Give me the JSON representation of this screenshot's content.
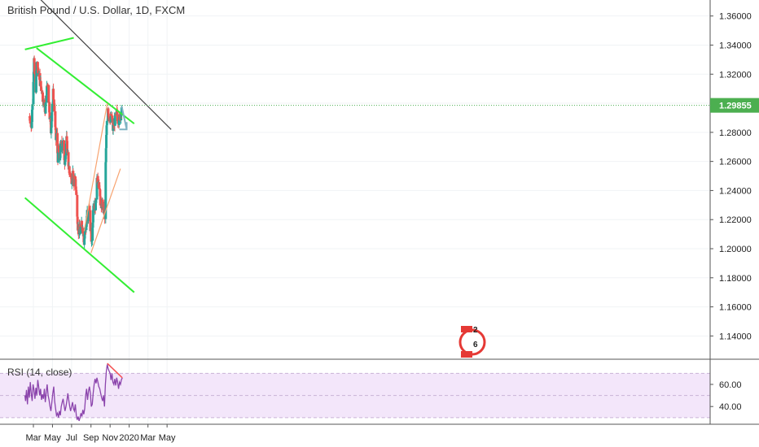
{
  "chart_data": {
    "type": "candlestick",
    "title": "British Pound / U.S. Dollar, 1D, FXCM",
    "current_price": "1.29855",
    "price_axis": {
      "ylim": [
        1.124,
        1.371
      ],
      "ticks": [
        "1.36000",
        "1.34000",
        "1.32000",
        "1.30000",
        "1.28000",
        "1.26000",
        "1.24000",
        "1.22000",
        "1.20000",
        "1.18000",
        "1.16000",
        "1.14000"
      ]
    },
    "time_axis": {
      "labels": [
        {
          "label": "Mar",
          "day": 0
        },
        {
          "label": "May",
          "day": 61
        },
        {
          "label": "Jul",
          "day": 122
        },
        {
          "label": "Sep",
          "day": 184
        },
        {
          "label": "Nov",
          "day": 245
        },
        {
          "label": "2020",
          "day": 306
        },
        {
          "label": "Mar",
          "day": 366
        },
        {
          "label": "May",
          "day": 427
        }
      ]
    },
    "close_path": [
      [
        -13,
        1.291
      ],
      [
        -9,
        1.288
      ],
      [
        -6,
        1.282
      ],
      [
        -3,
        1.302
      ],
      [
        0,
        1.317
      ],
      [
        2,
        1.33
      ],
      [
        4,
        1.32
      ],
      [
        6,
        1.315
      ],
      [
        8,
        1.31
      ],
      [
        10,
        1.322
      ],
      [
        12,
        1.333
      ],
      [
        14,
        1.325
      ],
      [
        16,
        1.318
      ],
      [
        18,
        1.321
      ],
      [
        20,
        1.312
      ],
      [
        22,
        1.315
      ],
      [
        24,
        1.31
      ],
      [
        26,
        1.313
      ],
      [
        28,
        1.308
      ],
      [
        30,
        1.304
      ],
      [
        32,
        1.301
      ],
      [
        34,
        1.296
      ],
      [
        36,
        1.3
      ],
      [
        38,
        1.292
      ],
      [
        40,
        1.305
      ],
      [
        42,
        1.308
      ],
      [
        44,
        1.312
      ],
      [
        46,
        1.314
      ],
      [
        48,
        1.305
      ],
      [
        50,
        1.3
      ],
      [
        52,
        1.292
      ],
      [
        54,
        1.285
      ],
      [
        56,
        1.278
      ],
      [
        58,
        1.29
      ],
      [
        60,
        1.3
      ],
      [
        62,
        1.31
      ],
      [
        64,
        1.305
      ],
      [
        66,
        1.3
      ],
      [
        68,
        1.29
      ],
      [
        70,
        1.282
      ],
      [
        72,
        1.275
      ],
      [
        74,
        1.278
      ],
      [
        76,
        1.27
      ],
      [
        78,
        1.262
      ],
      [
        80,
        1.27
      ],
      [
        82,
        1.262
      ],
      [
        84,
        1.258
      ],
      [
        86,
        1.268
      ],
      [
        88,
        1.272
      ],
      [
        90,
        1.275
      ],
      [
        92,
        1.27
      ],
      [
        94,
        1.274
      ],
      [
        96,
        1.272
      ],
      [
        98,
        1.265
      ],
      [
        100,
        1.26
      ],
      [
        102,
        1.265
      ],
      [
        104,
        1.27
      ],
      [
        106,
        1.275
      ],
      [
        108,
        1.268
      ],
      [
        110,
        1.262
      ],
      [
        112,
        1.258
      ],
      [
        114,
        1.255
      ],
      [
        116,
        1.248
      ],
      [
        118,
        1.25
      ],
      [
        120,
        1.252
      ],
      [
        122,
        1.244
      ],
      [
        124,
        1.25
      ],
      [
        126,
        1.252
      ],
      [
        128,
        1.246
      ],
      [
        130,
        1.244
      ],
      [
        132,
        1.25
      ],
      [
        134,
        1.248
      ],
      [
        136,
        1.24
      ],
      [
        138,
        1.232
      ],
      [
        140,
        1.225
      ],
      [
        142,
        1.215
      ],
      [
        144,
        1.212
      ],
      [
        146,
        1.214
      ],
      [
        148,
        1.213
      ],
      [
        150,
        1.21
      ],
      [
        152,
        1.215
      ],
      [
        154,
        1.218
      ],
      [
        156,
        1.215
      ],
      [
        158,
        1.213
      ],
      [
        160,
        1.208
      ],
      [
        162,
        1.205
      ],
      [
        164,
        1.21
      ],
      [
        166,
        1.217
      ],
      [
        168,
        1.213
      ],
      [
        170,
        1.22
      ],
      [
        172,
        1.225
      ],
      [
        174,
        1.215
      ],
      [
        176,
        1.22
      ],
      [
        178,
        1.228
      ],
      [
        180,
        1.225
      ],
      [
        182,
        1.215
      ],
      [
        184,
        1.21
      ],
      [
        186,
        1.203
      ],
      [
        188,
        1.21
      ],
      [
        190,
        1.22
      ],
      [
        192,
        1.232
      ],
      [
        194,
        1.235
      ],
      [
        196,
        1.23
      ],
      [
        198,
        1.228
      ],
      [
        200,
        1.236
      ],
      [
        202,
        1.245
      ],
      [
        204,
        1.248
      ],
      [
        206,
        1.246
      ],
      [
        208,
        1.25
      ],
      [
        210,
        1.244
      ],
      [
        212,
        1.238
      ],
      [
        214,
        1.232
      ],
      [
        216,
        1.225
      ],
      [
        218,
        1.228
      ],
      [
        220,
        1.232
      ],
      [
        222,
        1.228
      ],
      [
        224,
        1.222
      ],
      [
        226,
        1.23
      ],
      [
        228,
        1.22
      ],
      [
        230,
        1.248
      ],
      [
        232,
        1.268
      ],
      [
        234,
        1.285
      ],
      [
        236,
        1.295
      ],
      [
        238,
        1.298
      ],
      [
        240,
        1.292
      ],
      [
        242,
        1.29
      ],
      [
        244,
        1.295
      ],
      [
        246,
        1.285
      ],
      [
        248,
        1.29
      ],
      [
        250,
        1.293
      ],
      [
        252,
        1.288
      ],
      [
        254,
        1.282
      ],
      [
        256,
        1.286
      ],
      [
        258,
        1.29
      ],
      [
        260,
        1.287
      ],
      [
        262,
        1.291
      ],
      [
        264,
        1.288
      ],
      [
        266,
        1.294
      ],
      [
        268,
        1.292
      ],
      [
        270,
        1.288
      ],
      [
        272,
        1.285
      ],
      [
        274,
        1.291
      ],
      [
        276,
        1.289
      ],
      [
        278,
        1.292
      ],
      [
        280,
        1.294
      ],
      [
        282,
        1.298
      ]
    ],
    "drawings": [
      {
        "name": "upper-channel-line",
        "color": "#33ee33",
        "p1": [
          10,
          1.338
        ],
        "p2": [
          322,
          1.286
        ]
      },
      {
        "name": "lower-channel-line",
        "color": "#33ee33",
        "p1": [
          -27,
          1.235
        ],
        "p2": [
          322,
          1.17
        ]
      },
      {
        "name": "top-left-green-line",
        "color": "#33ee33",
        "p1": [
          -27,
          1.337
        ],
        "p2": [
          129,
          1.345
        ]
      },
      {
        "name": "long-black-trendline",
        "color": "#444444",
        "p1": [
          -27,
          1.382
        ],
        "p2": [
          440,
          1.282
        ]
      },
      {
        "name": "orange-upper-line",
        "color": "#f7a370",
        "p1": [
          162,
          1.212
        ],
        "p2": [
          236,
          1.3
        ]
      },
      {
        "name": "orange-lower-line",
        "color": "#f7a370",
        "p1": [
          184,
          1.197
        ],
        "p2": [
          278,
          1.255
        ]
      }
    ],
    "rsi": {
      "label": "RSI (14, close)",
      "ticks": [
        "60.00",
        "40.00"
      ],
      "band": [
        30,
        70
      ],
      "ylim": [
        24,
        82
      ],
      "values": [
        [
          -27,
          50
        ],
        [
          -25,
          45
        ],
        [
          -22,
          55
        ],
        [
          -19,
          42
        ],
        [
          -16,
          58
        ],
        [
          -13,
          48
        ],
        [
          -10,
          62
        ],
        [
          -7,
          52
        ],
        [
          -4,
          45
        ],
        [
          -1,
          60
        ],
        [
          2,
          55
        ],
        [
          5,
          47
        ],
        [
          8,
          57
        ],
        [
          11,
          50
        ],
        [
          14,
          64
        ],
        [
          17,
          58
        ],
        [
          20,
          50
        ],
        [
          23,
          56
        ],
        [
          26,
          46
        ],
        [
          29,
          51
        ],
        [
          32,
          47
        ],
        [
          35,
          56
        ],
        [
          38,
          44
        ],
        [
          41,
          53
        ],
        [
          44,
          60
        ],
        [
          47,
          50
        ],
        [
          50,
          46
        ],
        [
          53,
          40
        ],
        [
          56,
          36
        ],
        [
          59,
          44
        ],
        [
          62,
          52
        ],
        [
          65,
          58
        ],
        [
          68,
          45
        ],
        [
          71,
          38
        ],
        [
          74,
          32
        ],
        [
          77,
          34
        ],
        [
          80,
          30
        ],
        [
          83,
          36
        ],
        [
          86,
          32
        ],
        [
          89,
          40
        ],
        [
          92,
          44
        ],
        [
          95,
          47
        ],
        [
          98,
          41
        ],
        [
          101,
          36
        ],
        [
          104,
          40
        ],
        [
          107,
          45
        ],
        [
          110,
          52
        ],
        [
          113,
          46
        ],
        [
          116,
          40
        ],
        [
          119,
          36
        ],
        [
          122,
          40
        ],
        [
          125,
          44
        ],
        [
          128,
          38
        ],
        [
          131,
          36
        ],
        [
          134,
          42
        ],
        [
          137,
          32
        ],
        [
          140,
          28
        ],
        [
          143,
          31
        ],
        [
          146,
          27
        ],
        [
          149,
          30
        ],
        [
          152,
          34
        ],
        [
          155,
          31
        ],
        [
          158,
          37
        ],
        [
          161,
          33
        ],
        [
          164,
          38
        ],
        [
          167,
          50
        ],
        [
          170,
          56
        ],
        [
          173,
          46
        ],
        [
          176,
          54
        ],
        [
          179,
          58
        ],
        [
          182,
          52
        ],
        [
          185,
          40
        ],
        [
          188,
          42
        ],
        [
          191,
          52
        ],
        [
          194,
          60
        ],
        [
          197,
          65
        ],
        [
          200,
          61
        ],
        [
          203,
          66
        ],
        [
          206,
          62
        ],
        [
          209,
          58
        ],
        [
          212,
          56
        ],
        [
          215,
          52
        ],
        [
          218,
          48
        ],
        [
          221,
          45
        ],
        [
          224,
          50
        ],
        [
          227,
          40
        ],
        [
          230,
          60
        ],
        [
          233,
          72
        ],
        [
          236,
          78
        ],
        [
          239,
          74
        ],
        [
          242,
          72
        ],
        [
          245,
          70
        ],
        [
          248,
          64
        ],
        [
          251,
          70
        ],
        [
          254,
          62
        ],
        [
          257,
          60
        ],
        [
          260,
          65
        ],
        [
          263,
          59
        ],
        [
          266,
          66
        ],
        [
          269,
          62
        ],
        [
          272,
          56
        ],
        [
          275,
          62
        ],
        [
          278,
          60
        ],
        [
          281,
          64
        ],
        [
          284,
          66
        ]
      ],
      "divergence": {
        "p1": [
          236,
          79
        ],
        "p2": [
          284,
          66
        ],
        "color": "#f55252"
      }
    },
    "bar_pattern_arrow": {
      "from": [
        282,
        1.298
      ],
      "to": [
        298,
        1.282
      ],
      "color": "#7fb3c3"
    },
    "colors": {
      "up": "#26a69a",
      "down": "#ef5350",
      "rsi_line": "#8b44ac",
      "rsi_band": "#f3e6fa",
      "price_tag": "#4caf50"
    },
    "grid": true
  },
  "badge": {
    "top": "2",
    "bottom": "6"
  }
}
